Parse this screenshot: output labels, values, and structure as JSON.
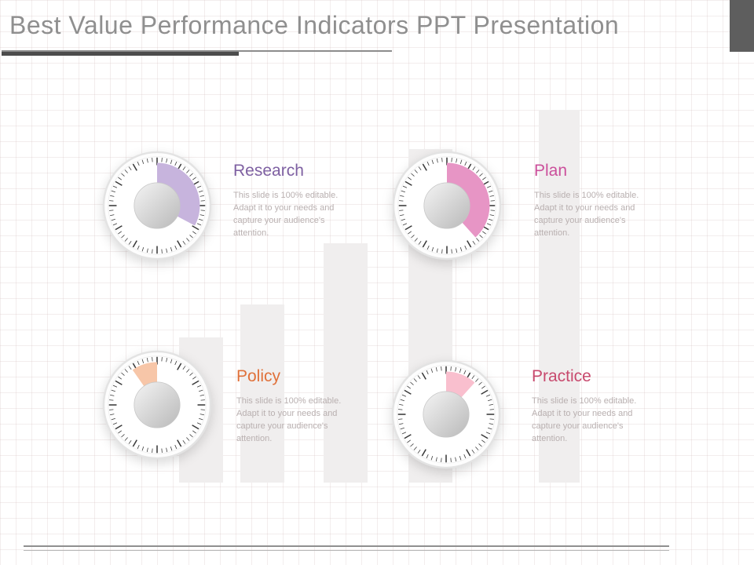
{
  "slide": {
    "title": "Best Value Performance Indicators PPT Presentation",
    "indicators": [
      {
        "label": "Research",
        "label_color": "#7e60a2",
        "wedge_color": "#c7b4dd",
        "wedge_start_deg": 0,
        "wedge_end_deg": 118,
        "description": "This slide is 100% editable. Adapt it to your needs and capture your audience's attention."
      },
      {
        "label": "Plan",
        "label_color": "#cb4f9b",
        "wedge_color": "#e795c5",
        "wedge_start_deg": 0,
        "wedge_end_deg": 138,
        "description": "This slide is 100% editable. Adapt it to your needs and capture your audience's attention."
      },
      {
        "label": "Policy",
        "label_color": "#e0713a",
        "wedge_color": "#f7c6a8",
        "wedge_start_deg": -35,
        "wedge_end_deg": 0,
        "description": "This slide is 100% editable. Adapt it to your needs and capture your audience's attention."
      },
      {
        "label": "Practice",
        "label_color": "#c84a6e",
        "wedge_color": "#f9bfce",
        "wedge_start_deg": 0,
        "wedge_end_deg": 42,
        "description": "This slide is 100% editable. Adapt it to your needs and capture your audience's attention."
      }
    ],
    "theme": {
      "title_color": "#8f8f8f",
      "underline_color": "#4c4c4c",
      "corner_block_color": "#5e5e5e",
      "grid_line_color": "#e8dcdc",
      "background_bar_color": "#f0eeee",
      "footer_line_color": "#909090"
    }
  }
}
